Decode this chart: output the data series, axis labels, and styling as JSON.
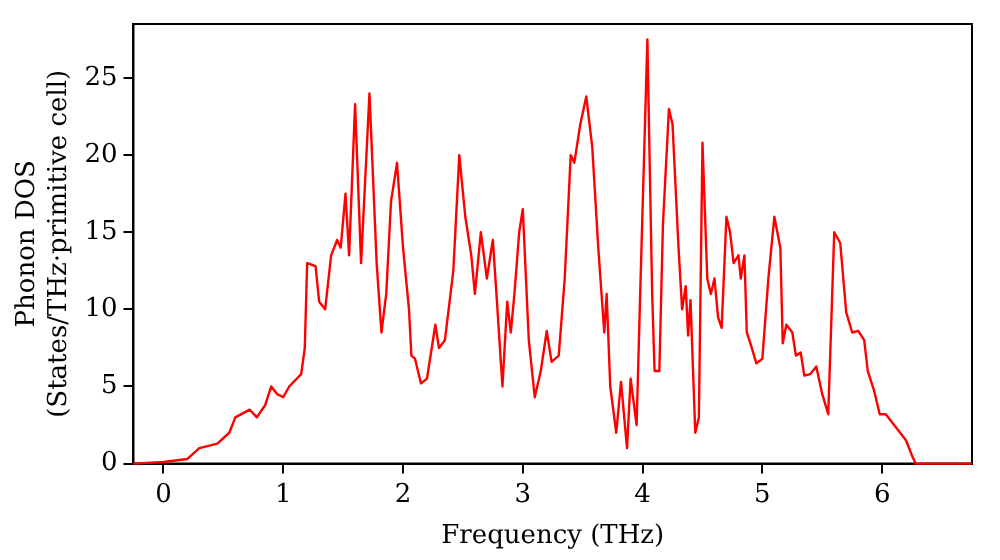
{
  "chart_data": {
    "type": "line",
    "xlabel": "Frequency (THz)",
    "ylabel": "Phonon DOS\n(States/THz·primitive cell)",
    "xlim": [
      -0.25,
      6.75
    ],
    "ylim": [
      0,
      28.5
    ],
    "xticks": [
      0,
      1,
      2,
      3,
      4,
      5,
      6
    ],
    "yticks": [
      0,
      5,
      10,
      15,
      20,
      25
    ],
    "grid": false,
    "legend": false,
    "marker": "none",
    "line_style": "solid",
    "series": [
      {
        "color": "#ff0000",
        "x": [
          -0.25,
          0,
          0.2,
          0.3,
          0.45,
          0.55,
          0.6,
          0.72,
          0.78,
          0.85,
          0.9,
          0.95,
          1.0,
          1.05,
          1.15,
          1.18,
          1.2,
          1.27,
          1.3,
          1.35,
          1.4,
          1.45,
          1.48,
          1.52,
          1.55,
          1.6,
          1.65,
          1.72,
          1.78,
          1.82,
          1.86,
          1.9,
          1.95,
          2.0,
          2.05,
          2.07,
          2.1,
          2.15,
          2.2,
          2.27,
          2.3,
          2.35,
          2.42,
          2.47,
          2.52,
          2.57,
          2.6,
          2.65,
          2.7,
          2.75,
          2.78,
          2.83,
          2.87,
          2.9,
          2.93,
          2.97,
          3.0,
          3.05,
          3.1,
          3.15,
          3.2,
          3.24,
          3.3,
          3.35,
          3.4,
          3.43,
          3.48,
          3.53,
          3.58,
          3.63,
          3.68,
          3.7,
          3.73,
          3.78,
          3.82,
          3.87,
          3.9,
          3.95,
          3.98,
          4.04,
          4.08,
          4.1,
          4.14,
          4.17,
          4.22,
          4.25,
          4.3,
          4.33,
          4.36,
          4.38,
          4.4,
          4.44,
          4.47,
          4.5,
          4.54,
          4.57,
          4.6,
          4.63,
          4.66,
          4.7,
          4.73,
          4.76,
          4.8,
          4.82,
          4.85,
          4.87,
          4.9,
          4.95,
          5.0,
          5.05,
          5.1,
          5.15,
          5.17,
          5.2,
          5.25,
          5.28,
          5.32,
          5.35,
          5.4,
          5.45,
          5.5,
          5.55,
          5.6,
          5.65,
          5.7,
          5.75,
          5.8,
          5.85,
          5.88,
          5.93,
          5.98,
          6.03,
          6.1,
          6.15,
          6.2,
          6.25,
          6.28,
          6.75
        ],
        "values": [
          0,
          0.1,
          0.3,
          1,
          1.3,
          2,
          3,
          3.5,
          3,
          3.8,
          5,
          4.5,
          4.3,
          5,
          5.8,
          7.5,
          13,
          12.8,
          10.5,
          10,
          13.5,
          14.5,
          14,
          17.5,
          13.5,
          23.3,
          13,
          24,
          13,
          8.5,
          11,
          17,
          19.5,
          14,
          10,
          7,
          6.8,
          5.2,
          5.5,
          9,
          7.5,
          8,
          12.5,
          20,
          16,
          13.5,
          11,
          15,
          12,
          14.5,
          11,
          5,
          10.5,
          8.5,
          11,
          15,
          16.5,
          8,
          4.3,
          6,
          8.6,
          6.6,
          7,
          12,
          20,
          19.5,
          22,
          23.8,
          20.5,
          14,
          8.5,
          11,
          5,
          2,
          5.3,
          1,
          5.5,
          2.5,
          11,
          27.5,
          11,
          6,
          6,
          15.5,
          23,
          22,
          14,
          10,
          11.5,
          8.3,
          10.6,
          2,
          3,
          20.8,
          12,
          11,
          12,
          9.5,
          8.8,
          16,
          15,
          13,
          13.5,
          12,
          13.5,
          8.5,
          7.8,
          6.5,
          6.8,
          12,
          16,
          14,
          7.8,
          9,
          8.5,
          7,
          7.2,
          5.7,
          5.8,
          6.3,
          4.5,
          3.2,
          15,
          14.3,
          9.8,
          8.5,
          8.6,
          8,
          6,
          4.8,
          3.2,
          3.2,
          2.5,
          2,
          1.5,
          0.5,
          0,
          0
        ]
      }
    ]
  }
}
